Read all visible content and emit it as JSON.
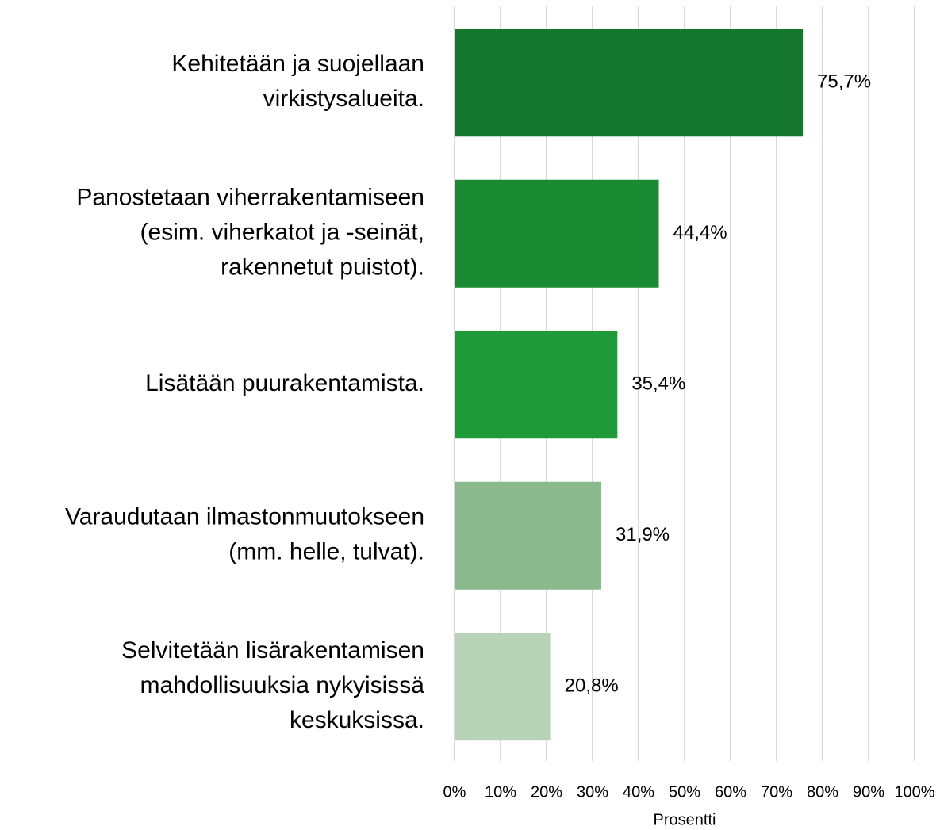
{
  "chart_data": {
    "type": "barh",
    "categories": [
      [
        "Kehitetään ja suojellaan",
        "virkistysalueita."
      ],
      [
        "Panostetaan viherrakentamiseen",
        "(esim. viherkatot ja -seinät,",
        "rakennetut puistot)."
      ],
      [
        "Lisätään puurakentamista."
      ],
      [
        "Varaudutaan ilmastonmuutokseen",
        "(mm. helle, tulvat)."
      ],
      [
        "Selvitetään lisärakentamisen",
        "mahdollisuuksia nykyisissä",
        "keskuksissa."
      ]
    ],
    "values": [
      75.7,
      44.4,
      35.4,
      31.9,
      20.8
    ],
    "value_labels": [
      "75,7%",
      "44,4%",
      "35,4%",
      "31,9%",
      "20,8%"
    ],
    "colors": [
      "#15772e",
      "#1a8a33",
      "#1e9b38",
      "#8ab98d",
      "#b9d3b9"
    ],
    "xlabel": "Prosentti",
    "xlim": [
      0,
      100
    ],
    "xticks": [
      {
        "value": 0,
        "label": "0%"
      },
      {
        "value": 10,
        "label": "10%"
      },
      {
        "value": 20,
        "label": "20%"
      },
      {
        "value": 30,
        "label": "30%"
      },
      {
        "value": 40,
        "label": "40%"
      },
      {
        "value": 50,
        "label": "50%"
      },
      {
        "value": 60,
        "label": "60%"
      },
      {
        "value": 70,
        "label": "70%"
      },
      {
        "value": 80,
        "label": "80%"
      },
      {
        "value": 90,
        "label": "90%"
      },
      {
        "value": 100,
        "label": "100%"
      }
    ],
    "grid": true
  }
}
